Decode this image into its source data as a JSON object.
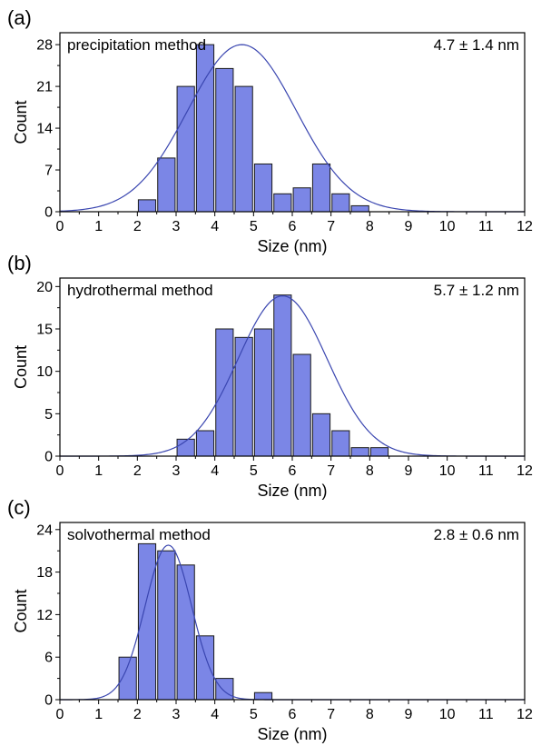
{
  "colors": {
    "bar_fill": "#7b86e6",
    "bar_stroke": "#1a1a1a",
    "fit_line": "#3a46b0",
    "axis": "#000000"
  },
  "chart_data": [
    {
      "type": "bar",
      "panel_label": "(a)",
      "method_label": "precipitation method",
      "stat_label": "4.7 ± 1.4 nm",
      "xlabel": "Size (nm)",
      "ylabel": "Count",
      "xlim": [
        0,
        12
      ],
      "ylim": [
        0,
        30
      ],
      "xticks": [
        "0",
        "1",
        "2",
        "3",
        "4",
        "5",
        "6",
        "7",
        "8",
        "9",
        "10",
        "11",
        "12"
      ],
      "yticks": [
        "0",
        "7",
        "14",
        "21",
        "28"
      ],
      "ytick_values": [
        0,
        7,
        14,
        21,
        28
      ],
      "x": [
        2.25,
        2.75,
        3.25,
        3.75,
        4.25,
        4.75,
        5.25,
        5.75,
        6.25,
        6.75,
        7.25,
        7.75,
        8.25,
        8.75
      ],
      "values": [
        2,
        9,
        21,
        28,
        24,
        21,
        8,
        3,
        4,
        8,
        3,
        1,
        0,
        0
      ],
      "bar_width": 0.45,
      "fit": {
        "type": "gaussian",
        "mean": 4.7,
        "sd": 1.4,
        "peak": 28
      },
      "grid": false
    },
    {
      "type": "bar",
      "panel_label": "(b)",
      "method_label": "hydrothermal method",
      "stat_label": "5.7 ± 1.2 nm",
      "xlabel": "Size (nm)",
      "ylabel": "Count",
      "xlim": [
        0,
        12
      ],
      "ylim": [
        0,
        21
      ],
      "xticks": [
        "0",
        "1",
        "2",
        "3",
        "4",
        "5",
        "6",
        "7",
        "8",
        "9",
        "10",
        "11",
        "12"
      ],
      "yticks": [
        "0",
        "5",
        "10",
        "15",
        "20"
      ],
      "ytick_values": [
        0,
        5,
        10,
        15,
        20
      ],
      "x": [
        3.25,
        3.75,
        4.25,
        4.75,
        5.25,
        5.75,
        6.25,
        6.75,
        7.25,
        7.75,
        8.25,
        8.75
      ],
      "values": [
        2,
        3,
        15,
        14,
        15,
        19,
        12,
        5,
        3,
        1,
        1,
        0
      ],
      "bar_width": 0.45,
      "fit": {
        "type": "gaussian",
        "mean": 5.75,
        "sd": 1.15,
        "peak": 18.9
      },
      "grid": false
    },
    {
      "type": "bar",
      "panel_label": "(c)",
      "method_label": "solvothermal method",
      "stat_label": "2.8 ± 0.6 nm",
      "xlabel": "Size (nm)",
      "ylabel": "Count",
      "xlim": [
        0,
        12
      ],
      "ylim": [
        0,
        25
      ],
      "xticks": [
        "0",
        "1",
        "2",
        "3",
        "4",
        "5",
        "6",
        "7",
        "8",
        "9",
        "10",
        "11",
        "12"
      ],
      "yticks": [
        "0",
        "6",
        "12",
        "18",
        "24"
      ],
      "ytick_values": [
        0,
        6,
        12,
        18,
        24
      ],
      "x": [
        1.75,
        2.25,
        2.75,
        3.25,
        3.75,
        4.25,
        4.75,
        5.25
      ],
      "values": [
        6,
        22,
        21,
        19,
        9,
        3,
        0,
        1
      ],
      "bar_width": 0.45,
      "fit": {
        "type": "gaussian",
        "mean": 2.8,
        "sd": 0.6,
        "peak": 21.8
      },
      "grid": false
    }
  ]
}
